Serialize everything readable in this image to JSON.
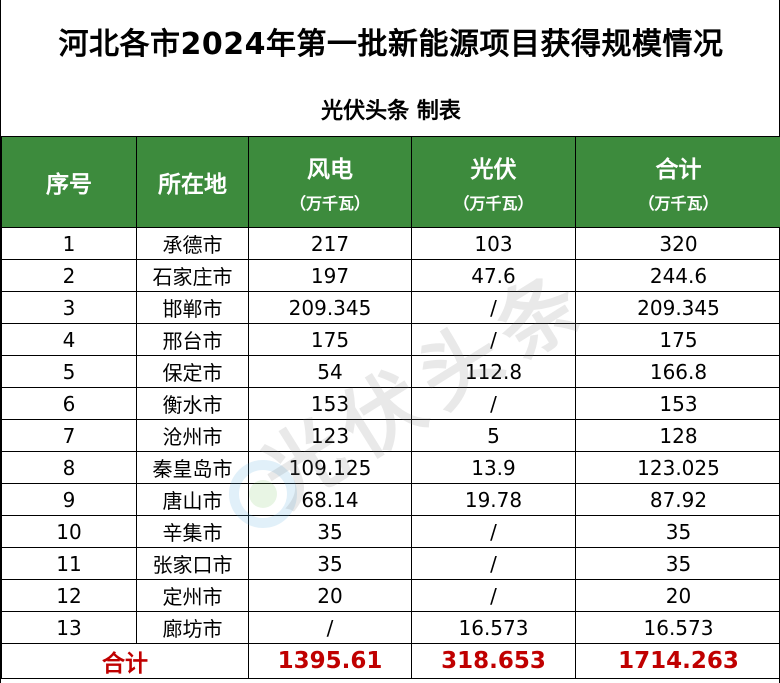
{
  "title": "河北各市2024年第一批新能源项目获得规模情况",
  "subtitle": "光伏头条 制表",
  "header": {
    "index": "序号",
    "city": "所在地",
    "wind": "风电",
    "solar": "光伏",
    "total": "合计",
    "unit": "（万千瓦）"
  },
  "rows": [
    {
      "index": "1",
      "city": "承德市",
      "wind": "217",
      "solar": "103",
      "total": "320"
    },
    {
      "index": "2",
      "city": "石家庄市",
      "wind": "197",
      "solar": "47.6",
      "total": "244.6"
    },
    {
      "index": "3",
      "city": "邯郸市",
      "wind": "209.345",
      "solar": "/",
      "total": "209.345"
    },
    {
      "index": "4",
      "city": "邢台市",
      "wind": "175",
      "solar": "/",
      "total": "175"
    },
    {
      "index": "5",
      "city": "保定市",
      "wind": "54",
      "solar": "112.8",
      "total": "166.8"
    },
    {
      "index": "6",
      "city": "衡水市",
      "wind": "153",
      "solar": "/",
      "total": "153"
    },
    {
      "index": "7",
      "city": "沧州市",
      "wind": "123",
      "solar": "5",
      "total": "128"
    },
    {
      "index": "8",
      "city": "秦皇岛市",
      "wind": "109.125",
      "solar": "13.9",
      "total": "123.025"
    },
    {
      "index": "9",
      "city": "唐山市",
      "wind": "68.14",
      "solar": "19.78",
      "total": "87.92"
    },
    {
      "index": "10",
      "city": "辛集市",
      "wind": "35",
      "solar": "/",
      "total": "35"
    },
    {
      "index": "11",
      "city": "张家口市",
      "wind": "35",
      "solar": "/",
      "total": "35"
    },
    {
      "index": "12",
      "city": "定州市",
      "wind": "20",
      "solar": "/",
      "total": "20"
    },
    {
      "index": "13",
      "city": "廊坊市",
      "wind": "/",
      "solar": "16.573",
      "total": "16.573"
    }
  ],
  "total_row": {
    "label": "合计",
    "wind": "1395.61",
    "solar": "318.653",
    "total": "1714.263"
  },
  "watermark": "光伏头条",
  "colors": {
    "header_bg": "#3d8b3d",
    "header_text": "#ffffff",
    "total_text": "#c00000"
  }
}
